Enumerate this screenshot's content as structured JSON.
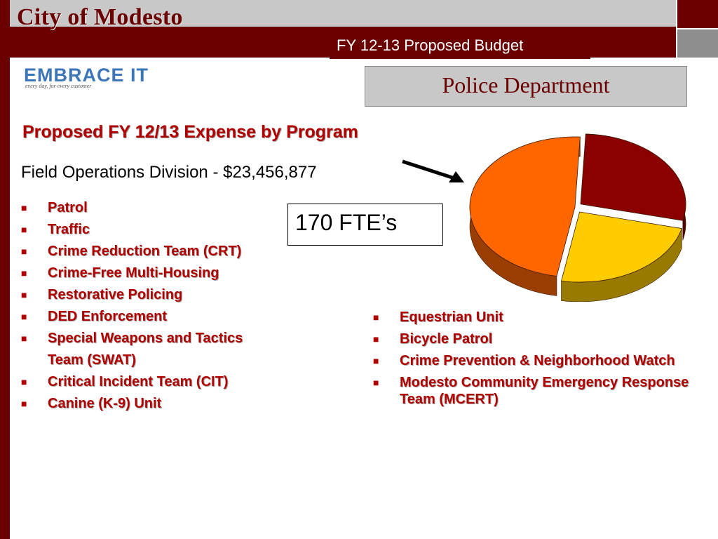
{
  "header": {
    "city_title": "City of Modesto",
    "budget_title": "FY 12-13 Proposed Budget",
    "logo_text": "EMBRACE IT",
    "logo_tagline": "every day, for every customer",
    "department": "Police Department"
  },
  "main": {
    "heading": "Proposed FY 12/13 Expense by Program",
    "division": "Field Operations Division - $23,456,877",
    "fte": "170 FTE’s",
    "programs_left": [
      "Patrol",
      "Traffic",
      "Crime Reduction Team (CRT)",
      "Crime-Free Multi-Housing",
      "Restorative Policing",
      "DED Enforcement",
      "Special Weapons and Tactics",
      "Team (SWAT)",
      "Critical Incident Team (CIT)",
      "Canine (K-9) Unit"
    ],
    "programs_right": [
      "Equestrian Unit",
      "Bicycle Patrol",
      "Crime Prevention & Neighborhood Watch",
      "Modesto Community Emergency Response Team (MCERT)"
    ]
  },
  "chart_data": {
    "type": "pie",
    "values": [
      48,
      28,
      24
    ],
    "colors": [
      "#ff6600",
      "#8b0000",
      "#ffcc00"
    ]
  },
  "colors": {
    "maroon": "#6b0000",
    "heading_red": "#b00000",
    "header_gray": "#c8c8c8"
  }
}
